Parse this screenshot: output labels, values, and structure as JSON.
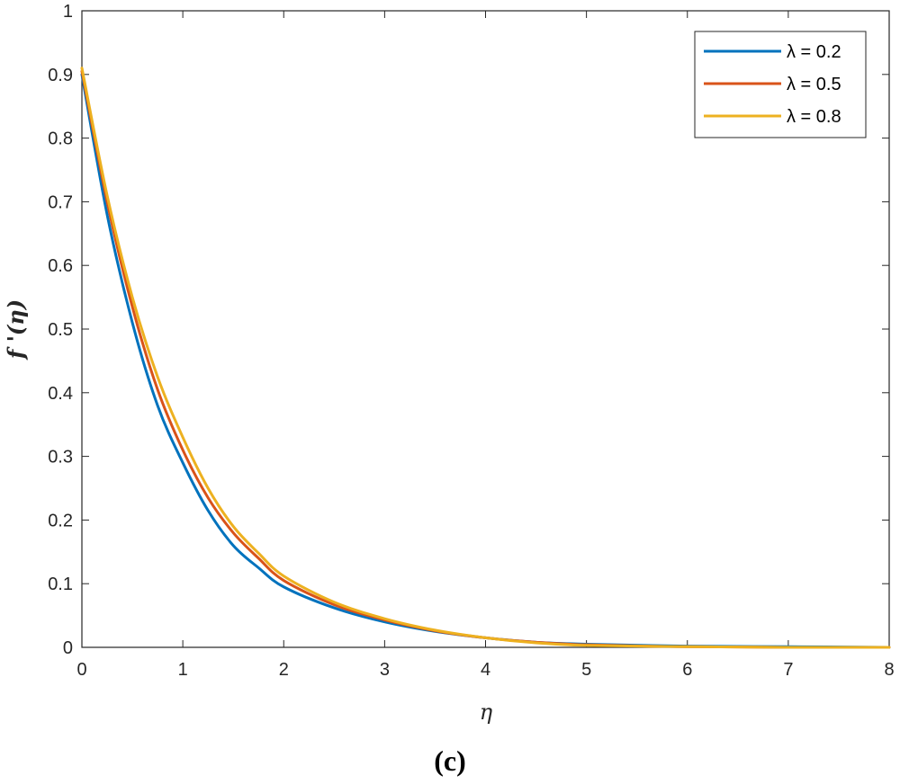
{
  "chart_data": {
    "type": "line",
    "xlabel": "η",
    "ylabel": "f '(η)",
    "xlim": [
      0,
      8
    ],
    "ylim": [
      0,
      1
    ],
    "xticks": [
      0,
      1,
      2,
      3,
      4,
      5,
      6,
      7,
      8
    ],
    "yticks": [
      0,
      0.1,
      0.2,
      0.3,
      0.4,
      0.5,
      0.6,
      0.7,
      0.8,
      0.9,
      1
    ],
    "grid": false,
    "legend_position": "top-right",
    "x": [
      0,
      0.25,
      0.5,
      0.75,
      1,
      1.25,
      1.5,
      1.75,
      2,
      2.5,
      3,
      3.5,
      4,
      4.5,
      5,
      6,
      7,
      8
    ],
    "series": [
      {
        "name": "λ = 0.2",
        "color": "#0072BD",
        "values": [
          0.9,
          0.68,
          0.51,
          0.38,
          0.29,
          0.215,
          0.16,
          0.125,
          0.095,
          0.062,
          0.04,
          0.025,
          0.015,
          0.008,
          0.005,
          0.002,
          0.001,
          0.0
        ]
      },
      {
        "name": "λ = 0.5",
        "color": "#D95319",
        "values": [
          0.905,
          0.7,
          0.535,
          0.405,
          0.31,
          0.235,
          0.18,
          0.14,
          0.105,
          0.067,
          0.043,
          0.026,
          0.015,
          0.008,
          0.004,
          0.001,
          0.0,
          0.0
        ]
      },
      {
        "name": "λ = 0.8",
        "color": "#EDB120",
        "values": [
          0.91,
          0.71,
          0.55,
          0.425,
          0.33,
          0.25,
          0.19,
          0.148,
          0.112,
          0.071,
          0.045,
          0.027,
          0.015,
          0.007,
          0.003,
          0.001,
          0.0,
          0.0
        ]
      }
    ]
  },
  "panel_label": "(c)"
}
